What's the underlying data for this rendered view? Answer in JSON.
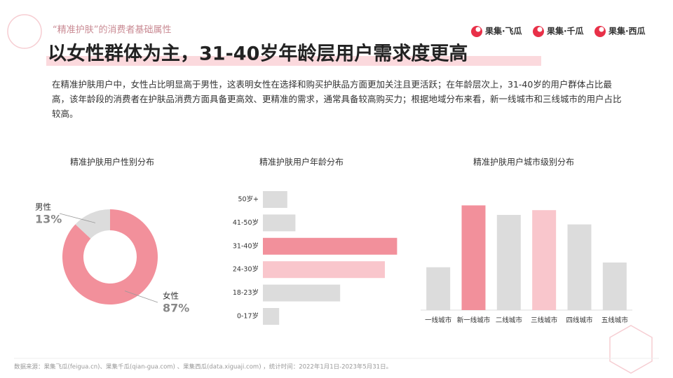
{
  "header": {
    "subtitle": "“精准护肤”的消费者基础属性",
    "title": "以女性群体为主，31-40岁年龄层用户需求度更高",
    "brands": [
      "果集·飞瓜",
      "果集·千瓜",
      "果集·西瓜"
    ]
  },
  "body": "在精准护肤用户中，女性占比明显高于男性，这表明女性在选择和购买护肤品方面更加关注且更活跃；在年龄层次上，31-40岁的用户群体占比最高，该年龄段的消费者在护肤品消费方面具备更高效、更精准的需求，通常具备较高购买力；根据地域分布来看，新一线城市和三线城市的用户占比较高。",
  "footer": "数据来源：果集飞瓜(feigua.cn)、果集千瓜(qian-gua.com) 、果集西瓜(data.xiguaji.com) ，统计时间：2022年1月1日-2023年5月31日。",
  "chart_data": [
    {
      "type": "pie",
      "donut": true,
      "title": "精准护肤用户性别分布",
      "categories": [
        "男性",
        "女性"
      ],
      "values": [
        13,
        87
      ],
      "value_labels": [
        "13%",
        "87%"
      ],
      "colors": [
        "#dcdcdc",
        "#f2909b"
      ]
    },
    {
      "type": "bar",
      "orientation": "horizontal",
      "title": "精准护肤用户年龄分布",
      "categories": [
        "50岁+",
        "41-50岁",
        "31-40岁",
        "24-30岁",
        "18-23岁",
        "0-17岁"
      ],
      "values": [
        6,
        8,
        33,
        30,
        19,
        4
      ],
      "colors": [
        "#dcdcdc",
        "#dcdcdc",
        "#f2909b",
        "#f9c6cc",
        "#dcdcdc",
        "#dcdcdc"
      ],
      "xlim": [
        0,
        35
      ]
    },
    {
      "type": "bar",
      "orientation": "vertical",
      "title": "精准护肤用户城市级别分布",
      "categories": [
        "一线城市",
        "新一线城市",
        "二线城市",
        "三线城市",
        "四线城市",
        "五线城市"
      ],
      "values": [
        9,
        22,
        20,
        21,
        18,
        10
      ],
      "colors": [
        "#dcdcdc",
        "#f2909b",
        "#dcdcdc",
        "#f9c6cc",
        "#dcdcdc",
        "#dcdcdc"
      ],
      "ylim": [
        0,
        25
      ]
    }
  ]
}
